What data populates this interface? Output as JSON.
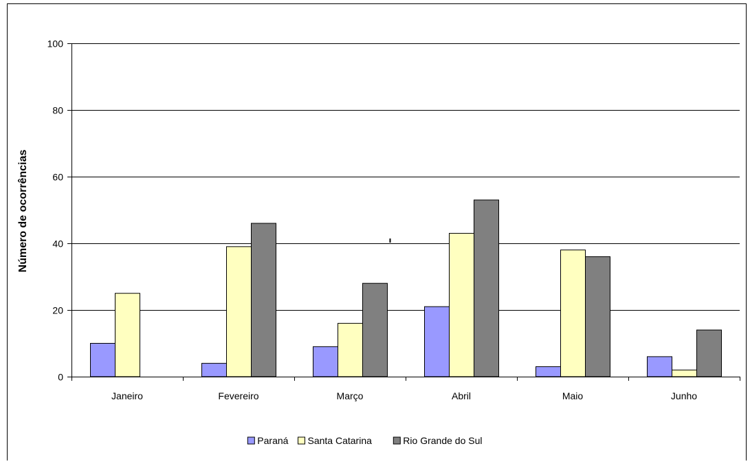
{
  "chart_data": {
    "type": "bar",
    "title": "",
    "xlabel": "",
    "ylabel": "Número de ocorrências",
    "ylim": [
      0,
      100
    ],
    "yticks": [
      0,
      20,
      40,
      60,
      80,
      100
    ],
    "grid": true,
    "legend_position": "bottom",
    "categories": [
      "Janeiro",
      "Fevereiro",
      "Março",
      "Abril",
      "Maio",
      "Junho"
    ],
    "series": [
      {
        "name": "Paraná",
        "color": "#9999ff",
        "values": [
          10,
          4,
          9,
          21,
          3,
          6
        ]
      },
      {
        "name": "Santa Catarina",
        "color": "#ffffc0",
        "values": [
          25,
          39,
          16,
          43,
          38,
          2
        ]
      },
      {
        "name": "Rio Grande do Sul",
        "color": "#808080",
        "values": [
          0,
          46,
          28,
          53,
          36,
          14
        ]
      }
    ]
  }
}
